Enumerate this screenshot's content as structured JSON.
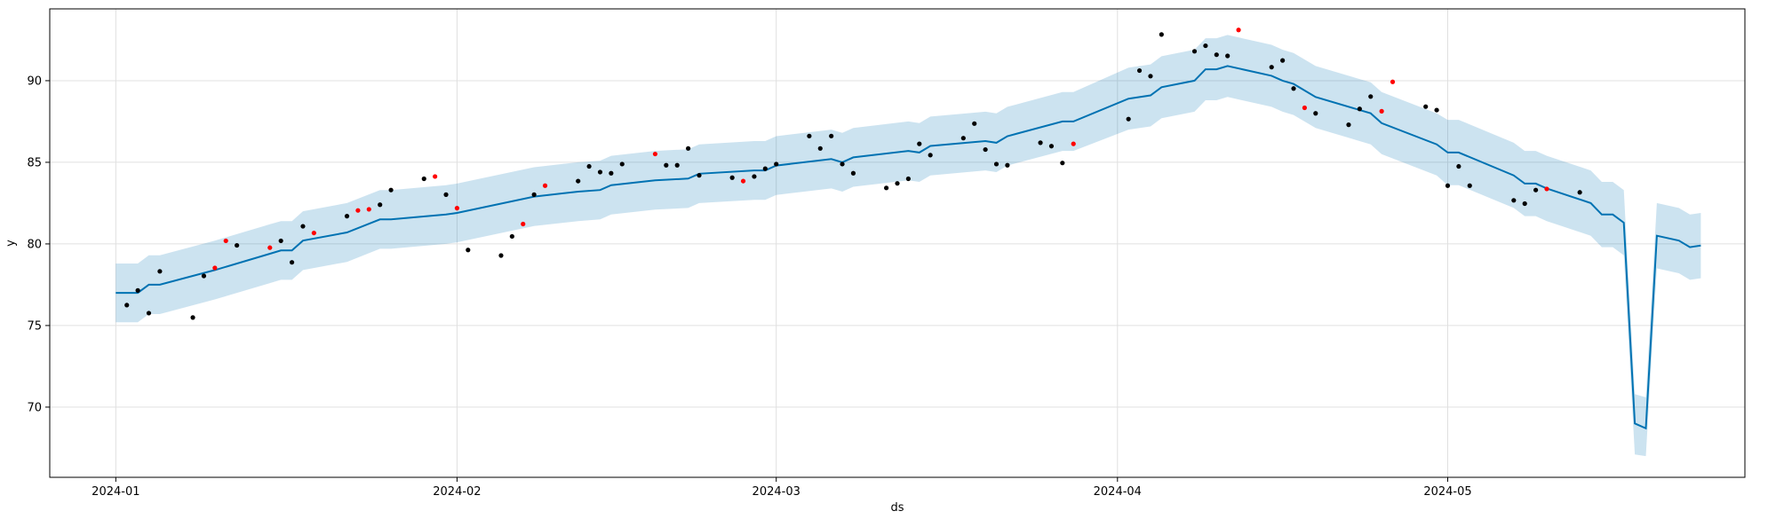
{
  "chart_data": {
    "type": "forecast",
    "x_label": "ds",
    "y_label": "y",
    "xlim": [
      "2023-12-26",
      "2024-05-28"
    ],
    "xticks": [
      {
        "value": "2024-01-01",
        "label": "2024-01"
      },
      {
        "value": "2024-02-01",
        "label": "2024-02"
      },
      {
        "value": "2024-03-01",
        "label": "2024-03"
      },
      {
        "value": "2024-04-01",
        "label": "2024-04"
      },
      {
        "value": "2024-05-01",
        "label": "2024-05"
      }
    ],
    "ylim": [
      65.7,
      94.4
    ],
    "yticks": [
      70,
      75,
      80,
      85,
      90
    ],
    "grid": true,
    "forecast": {
      "color": "#0072B2",
      "band_color": "#0072B2",
      "x": [
        "2024-01-01",
        "2024-01-03",
        "2024-01-04",
        "2024-01-05",
        "2024-01-10",
        "2024-01-15",
        "2024-01-16",
        "2024-01-17",
        "2024-01-18",
        "2024-01-22",
        "2024-01-25",
        "2024-01-26",
        "2024-01-31",
        "2024-02-01",
        "2024-02-08",
        "2024-02-12",
        "2024-02-14",
        "2024-02-15",
        "2024-02-19",
        "2024-02-22",
        "2024-02-23",
        "2024-02-28",
        "2024-02-29",
        "2024-03-01",
        "2024-03-06",
        "2024-03-07",
        "2024-03-08",
        "2024-03-13",
        "2024-03-14",
        "2024-03-15",
        "2024-03-20",
        "2024-03-21",
        "2024-03-22",
        "2024-03-27",
        "2024-03-28",
        "2024-04-02",
        "2024-04-04",
        "2024-04-05",
        "2024-04-08",
        "2024-04-09",
        "2024-04-10",
        "2024-04-11",
        "2024-04-15",
        "2024-04-16",
        "2024-04-17",
        "2024-04-19",
        "2024-04-24",
        "2024-04-25",
        "2024-04-30",
        "2024-05-01",
        "2024-05-02",
        "2024-05-07",
        "2024-05-08",
        "2024-05-09",
        "2024-05-10",
        "2024-05-14",
        "2024-05-15",
        "2024-05-16",
        "2024-05-17",
        "2024-05-18",
        "2024-05-19",
        "2024-05-20",
        "2024-05-22",
        "2024-05-23",
        "2024-05-24"
      ],
      "values": [
        77.0,
        77.0,
        77.5,
        77.5,
        78.4,
        79.4,
        79.6,
        79.6,
        80.2,
        80.7,
        81.5,
        81.5,
        81.8,
        81.9,
        82.9,
        83.2,
        83.3,
        83.6,
        83.9,
        84.0,
        84.3,
        84.5,
        84.5,
        84.8,
        85.2,
        85.0,
        85.3,
        85.7,
        85.6,
        86.0,
        86.3,
        86.2,
        86.6,
        87.5,
        87.5,
        88.9,
        89.1,
        89.6,
        90.0,
        90.7,
        90.7,
        90.9,
        90.3,
        90.0,
        89.8,
        89.0,
        88.0,
        87.4,
        86.1,
        85.6,
        85.6,
        84.2,
        83.7,
        83.7,
        83.4,
        82.5,
        81.8,
        81.8,
        81.3,
        69.0,
        68.7,
        80.5,
        80.2,
        79.8,
        79.9
      ],
      "lower": [
        75.2,
        75.2,
        75.7,
        75.7,
        76.6,
        77.6,
        77.8,
        77.8,
        78.4,
        78.9,
        79.7,
        79.7,
        80.0,
        80.1,
        81.1,
        81.4,
        81.5,
        81.8,
        82.1,
        82.2,
        82.5,
        82.7,
        82.7,
        83.0,
        83.4,
        83.2,
        83.5,
        83.9,
        83.8,
        84.2,
        84.5,
        84.4,
        84.8,
        85.7,
        85.7,
        87.0,
        87.2,
        87.7,
        88.1,
        88.8,
        88.8,
        89.0,
        88.4,
        88.1,
        87.9,
        87.1,
        86.1,
        85.5,
        84.2,
        83.6,
        83.6,
        82.2,
        81.7,
        81.7,
        81.4,
        80.5,
        79.8,
        79.8,
        79.3,
        67.1,
        67.0,
        78.5,
        78.2,
        77.8,
        77.9
      ],
      "upper": [
        78.8,
        78.8,
        79.3,
        79.3,
        80.2,
        81.2,
        81.4,
        81.4,
        82.0,
        82.5,
        83.3,
        83.3,
        83.6,
        83.7,
        84.7,
        85.0,
        85.1,
        85.4,
        85.7,
        85.8,
        86.1,
        86.3,
        86.3,
        86.6,
        87.0,
        86.8,
        87.1,
        87.5,
        87.4,
        87.8,
        88.1,
        88.0,
        88.4,
        89.3,
        89.3,
        90.8,
        91.0,
        91.5,
        91.9,
        92.6,
        92.6,
        92.8,
        92.2,
        91.9,
        91.7,
        90.9,
        89.9,
        89.3,
        88.0,
        87.6,
        87.6,
        86.2,
        85.7,
        85.7,
        85.4,
        84.5,
        83.8,
        83.8,
        83.3,
        70.8,
        70.6,
        82.5,
        82.2,
        81.8,
        81.9
      ]
    },
    "series": [
      {
        "color": "#000000",
        "x": [
          "2024-01-02",
          "2024-01-03",
          "2024-01-04",
          "2024-01-05",
          "2024-01-08",
          "2024-01-09",
          "2024-01-12",
          "2024-01-16",
          "2024-01-17",
          "2024-01-18",
          "2024-01-22",
          "2024-01-25",
          "2024-01-26",
          "2024-01-29",
          "2024-01-31",
          "2024-02-02",
          "2024-02-05",
          "2024-02-06",
          "2024-02-08",
          "2024-02-12",
          "2024-02-13",
          "2024-02-14",
          "2024-02-15",
          "2024-02-16",
          "2024-02-20",
          "2024-02-21",
          "2024-02-22",
          "2024-02-23",
          "2024-02-26",
          "2024-02-28",
          "2024-02-29",
          "2024-03-01",
          "2024-03-04",
          "2024-03-05",
          "2024-03-06",
          "2024-03-07",
          "2024-03-08",
          "2024-03-11",
          "2024-03-12",
          "2024-03-13",
          "2024-03-14",
          "2024-03-15",
          "2024-03-18",
          "2024-03-19",
          "2024-03-20",
          "2024-03-21",
          "2024-03-22",
          "2024-03-25",
          "2024-03-26",
          "2024-03-27",
          "2024-04-02",
          "2024-04-03",
          "2024-04-04",
          "2024-04-05",
          "2024-04-08",
          "2024-04-09",
          "2024-04-10",
          "2024-04-11",
          "2024-04-15",
          "2024-04-16",
          "2024-04-17",
          "2024-04-19",
          "2024-04-22",
          "2024-04-23",
          "2024-04-24",
          "2024-04-29",
          "2024-04-30",
          "2024-05-01",
          "2024-05-02",
          "2024-05-03",
          "2024-05-07",
          "2024-05-08",
          "2024-05-09",
          "2024-05-13"
        ],
        "values": [
          76.25,
          77.15,
          75.76,
          78.32,
          75.49,
          78.04,
          79.91,
          80.19,
          78.87,
          81.08,
          81.7,
          82.4,
          83.3,
          83.99,
          83.02,
          79.63,
          79.29,
          80.46,
          83.02,
          83.85,
          84.75,
          84.4,
          84.33,
          84.89,
          84.82,
          84.82,
          85.85,
          84.2,
          84.06,
          84.13,
          84.61,
          84.89,
          86.61,
          85.85,
          86.61,
          84.89,
          84.33,
          83.43,
          83.71,
          83.99,
          86.13,
          85.44,
          86.48,
          87.37,
          85.78,
          84.89,
          84.82,
          86.2,
          85.99,
          84.96,
          87.65,
          90.62,
          90.28,
          92.83,
          91.8,
          92.14,
          91.59,
          91.52,
          90.83,
          91.24,
          89.52,
          88.0,
          87.3,
          88.27,
          89.03,
          88.41,
          88.2,
          83.57,
          84.75,
          83.57,
          82.67,
          82.47,
          83.3,
          83.16
        ]
      },
      {
        "color": "#ff0000",
        "x": [
          "2024-01-10",
          "2024-01-11",
          "2024-01-15",
          "2024-01-19",
          "2024-01-23",
          "2024-01-24",
          "2024-01-30",
          "2024-02-01",
          "2024-02-07",
          "2024-02-09",
          "2024-02-19",
          "2024-02-27",
          "2024-03-28",
          "2024-04-12",
          "2024-04-18",
          "2024-04-25",
          "2024-04-26",
          "2024-05-10"
        ],
        "values": [
          78.53,
          80.19,
          79.77,
          80.67,
          82.05,
          82.12,
          84.13,
          82.19,
          81.22,
          83.57,
          85.51,
          83.85,
          86.13,
          93.11,
          88.34,
          88.13,
          89.93,
          83.37
        ]
      }
    ]
  }
}
